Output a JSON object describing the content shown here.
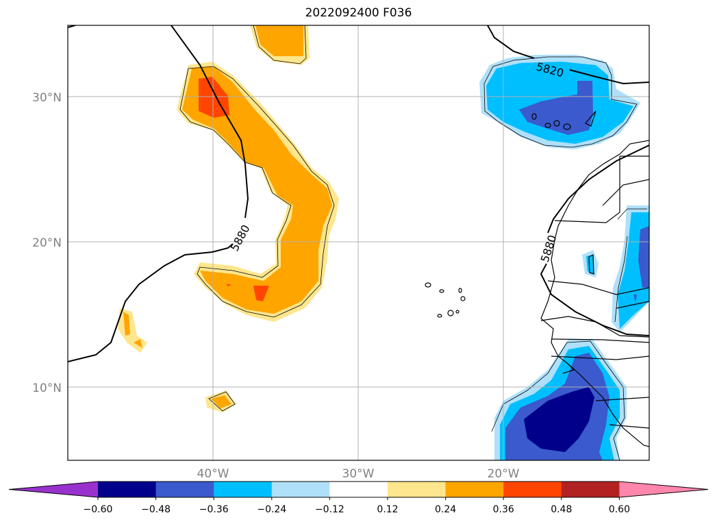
{
  "title": "2022092400 F036",
  "map": {
    "lon_labels": [
      "40°W",
      "30°W",
      "20°W"
    ],
    "lat_labels": [
      "30°N",
      "20°N",
      "10°N"
    ],
    "contour_labels": [
      "5820",
      "5880",
      "5880"
    ],
    "gridlines": true
  },
  "colorbar": {
    "ticks": [
      "−0.60",
      "−0.48",
      "−0.36",
      "−0.24",
      "−0.12",
      "0.12",
      "0.24",
      "0.36",
      "0.48",
      "0.60"
    ],
    "colors": [
      "#9932cc",
      "#00008b",
      "#3a5acd",
      "#00bfff",
      "#afe0fa",
      "#ffffff",
      "#fde68d",
      "#ffa500",
      "#ff4500",
      "#b22222",
      "#ff87ad"
    ]
  }
}
